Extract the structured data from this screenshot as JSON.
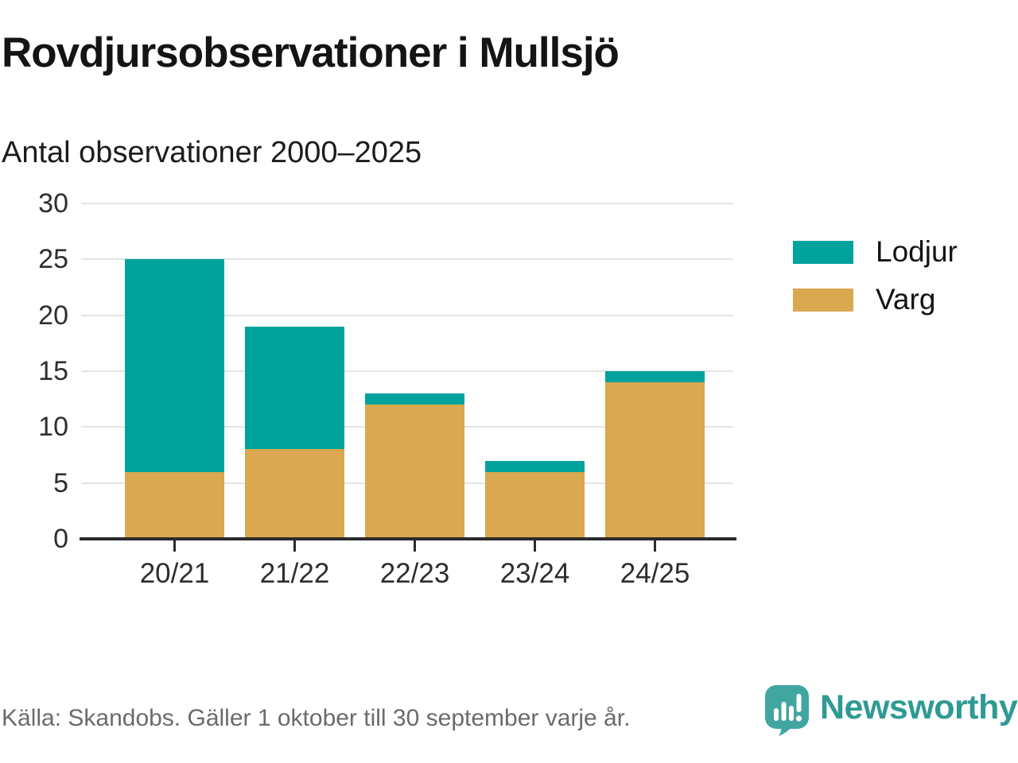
{
  "chart_data": {
    "type": "bar",
    "stacked": true,
    "title": "Rovdjursobservationer i Mullsjö",
    "subtitle": "Antal observationer 2000–2025",
    "categories": [
      "20/21",
      "21/22",
      "22/23",
      "23/24",
      "24/25"
    ],
    "series": [
      {
        "name": "Lodjur",
        "color": "#00a39b",
        "values": [
          19,
          11,
          1,
          1,
          1
        ]
      },
      {
        "name": "Varg",
        "color": "#d9a850",
        "values": [
          6,
          8,
          12,
          6,
          14
        ]
      }
    ],
    "stack_order": [
      "Varg",
      "Lodjur"
    ],
    "totals": [
      25,
      19,
      13,
      7,
      15
    ],
    "xlabel": "",
    "ylabel": "",
    "ylim": [
      0,
      30
    ],
    "yticks": [
      0,
      5,
      10,
      15,
      20,
      25,
      30
    ],
    "grid": true,
    "legend_position": "right"
  },
  "footer": {
    "source": "Källa: Skandobs. Gäller 1 oktober till 30 september varje år.",
    "brand": "Newsworthy",
    "brand_color": "#2f9a94",
    "icon_color": "#41a6a0"
  }
}
